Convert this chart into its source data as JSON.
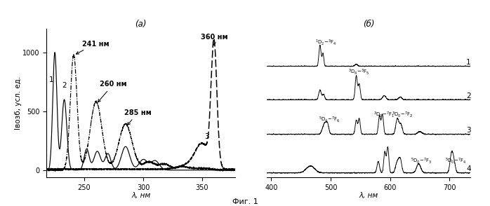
{
  "title_a": "(а)",
  "title_b": "(б)",
  "fig_caption": "Фиг. 1",
  "panel_a": {
    "ylabel": "Iвозб, усл. ед.",
    "xlabel": "λ, нм",
    "xticks": [
      250,
      300,
      350
    ],
    "yticks": [
      0,
      500,
      1000
    ],
    "xlim": [
      218,
      378
    ],
    "ylim": [
      -60,
      1200
    ]
  },
  "panel_b": {
    "xlabel": "λ, нм",
    "xticks": [
      400,
      500,
      600,
      700
    ],
    "xlim": [
      393,
      735
    ]
  }
}
